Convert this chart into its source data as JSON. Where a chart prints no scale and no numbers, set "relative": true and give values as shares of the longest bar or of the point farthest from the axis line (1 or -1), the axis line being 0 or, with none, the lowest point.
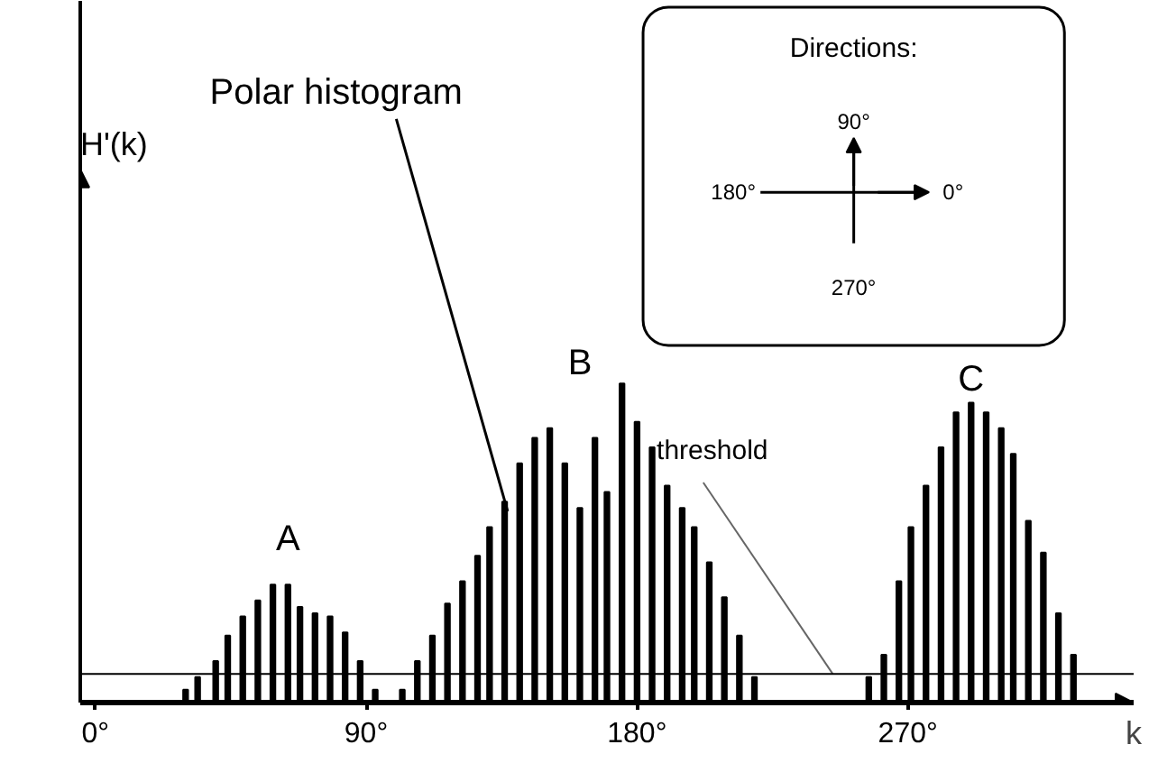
{
  "chart_data": {
    "type": "bar",
    "relative": true,
    "xlabel": "k",
    "color": "#000000",
    "x": [
      30,
      34,
      40,
      44,
      49,
      54,
      59,
      64,
      68,
      73,
      78,
      83,
      88,
      93,
      102,
      107,
      112,
      117,
      122,
      127,
      131,
      136,
      141,
      146,
      151,
      156,
      161,
      166,
      170,
      175,
      180,
      185,
      190,
      195,
      199,
      204,
      209,
      214,
      219,
      257,
      262,
      267,
      271,
      276,
      281,
      286,
      291,
      296,
      301,
      305,
      310,
      315,
      320,
      325
    ],
    "values": [
      0.04,
      0.08,
      0.13,
      0.21,
      0.27,
      0.32,
      0.37,
      0.37,
      0.3,
      0.28,
      0.27,
      0.22,
      0.13,
      0.04,
      0.04,
      0.13,
      0.21,
      0.31,
      0.38,
      0.46,
      0.55,
      0.63,
      0.75,
      0.83,
      0.86,
      0.75,
      0.61,
      0.83,
      0.66,
      1,
      0.88,
      0.8,
      0.68,
      0.61,
      0.55,
      0.44,
      0.33,
      0.21,
      0.08,
      0.08,
      0.15,
      0.38,
      0.55,
      0.68,
      0.8,
      0.91,
      0.94,
      0.91,
      0.86,
      0.78,
      0.57,
      0.47,
      0.28,
      0.15
    ],
    "xlim": [
      -5,
      345
    ],
    "xticks": [
      {
        "value": 0,
        "label": "0°"
      },
      {
        "value": 90,
        "label": "90°"
      },
      {
        "value": 180,
        "label": "180°"
      },
      {
        "value": 270,
        "label": "270°"
      }
    ],
    "ref_lines": [
      {
        "axis": "y",
        "value": 0.09,
        "label": "threshold"
      }
    ],
    "annotations": [
      "Polar histogram",
      "A",
      "B",
      "C",
      "H'(k)",
      "Directions:",
      "90°",
      "180°",
      "0°",
      "270°"
    ],
    "grid": false
  }
}
